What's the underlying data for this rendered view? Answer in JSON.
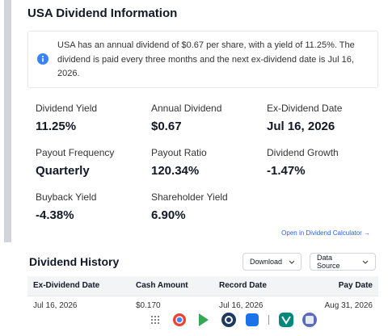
{
  "header": {
    "title": "USA Dividend Information"
  },
  "info": {
    "text": "USA has an annual dividend of $0.67 per share, with a yield of 11.25%. The dividend is paid every three months and the next ex-dividend date is Jul 16, 2026."
  },
  "stats": [
    {
      "label": "Dividend Yield",
      "value": "11.25%"
    },
    {
      "label": "Annual Dividend",
      "value": "$0.67"
    },
    {
      "label": "Ex-Dividend Date",
      "value": "Jul 16, 2026"
    },
    {
      "label": "Payout Frequency",
      "value": "Quarterly"
    },
    {
      "label": "Payout Ratio",
      "value": "120.34%"
    },
    {
      "label": "Dividend Growth",
      "value": "-1.47%"
    },
    {
      "label": "Buyback Yield",
      "value": "-4.38%"
    },
    {
      "label": "Shareholder Yield",
      "value": "6.90%"
    }
  ],
  "calculator_link": "Open in Dividend Calculator →",
  "history": {
    "title": "Dividend History",
    "buttons": [
      "Download",
      "Data Source"
    ],
    "table": {
      "columns": [
        "Ex-Dividend Date",
        "Cash Amount",
        "Record Date",
        "Pay Date"
      ],
      "rows": [
        [
          "Jul 16, 2026",
          "$0.170",
          "Jul 16, 2026",
          "Aug 31, 2026"
        ]
      ]
    }
  }
}
